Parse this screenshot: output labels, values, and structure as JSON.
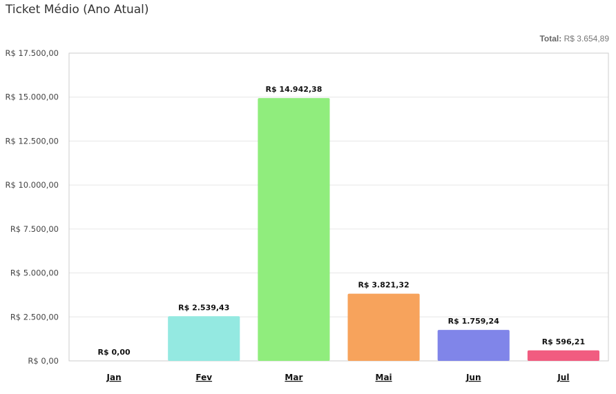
{
  "header": {
    "title": "Ticket Médio (Ano Atual)",
    "total_label": "Total:",
    "total_value": "R$ 3.654,89"
  },
  "chart_data": {
    "type": "bar",
    "categories": [
      "Jan",
      "Fev",
      "Mar",
      "Mai",
      "Jun",
      "Jul"
    ],
    "values": [
      0,
      2539.43,
      14942.38,
      3821.32,
      1759.24,
      596.21
    ],
    "value_labels": [
      "R$ 0,00",
      "R$ 2.539,43",
      "R$ 14.942,38",
      "R$ 3.821,32",
      "R$ 1.759,24",
      "R$ 596,21"
    ],
    "colors": [
      "#cccccc",
      "#94e9e1",
      "#90ed7d",
      "#f7a35c",
      "#8085e9",
      "#f15c80"
    ],
    "ylim": [
      0,
      17500
    ],
    "yticks": [
      0,
      2500,
      5000,
      7500,
      10000,
      12500,
      15000,
      17500
    ],
    "ytick_labels": [
      "R$ 0,00",
      "R$ 2.500,00",
      "R$ 5.000,00",
      "R$ 7.500,00",
      "R$ 10.000,00",
      "R$ 12.500,00",
      "R$ 15.000,00",
      "R$ 17.500,00"
    ],
    "grid": true,
    "legend": "none"
  }
}
